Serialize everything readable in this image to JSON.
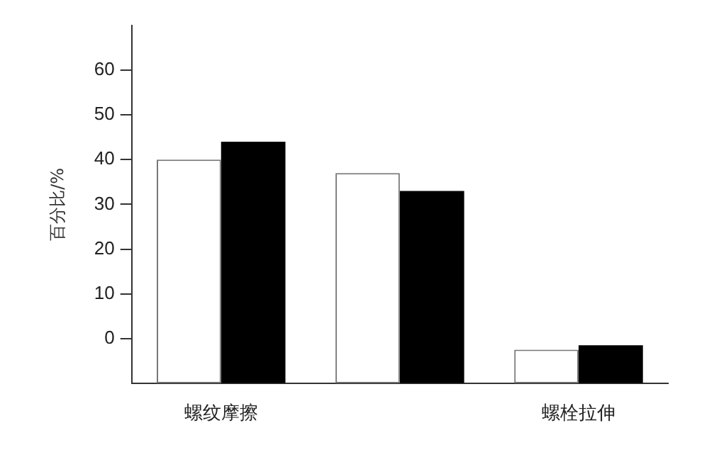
{
  "chart_data": {
    "type": "bar",
    "ylabel": "百分比/%",
    "categories": [
      "螺纹摩擦",
      null,
      "螺栓拉伸"
    ],
    "series": [
      {
        "color": "#ffffff",
        "base": [
          -10,
          -10,
          -10
        ],
        "values": [
          50,
          47,
          7.5
        ]
      },
      {
        "color": "#000000",
        "base": [
          -10,
          -10,
          -10
        ],
        "values": [
          54,
          43,
          8.5
        ]
      }
    ],
    "ylim": [
      -10,
      70
    ],
    "yticks": [
      0,
      10,
      20,
      30,
      40,
      50,
      60
    ],
    "grid": false,
    "legend": false
  }
}
